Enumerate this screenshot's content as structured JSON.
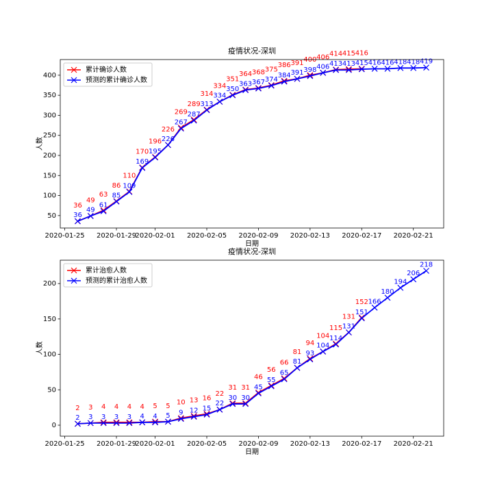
{
  "chart_data": [
    {
      "type": "line",
      "title": "疫情状况-深圳",
      "xlabel": "日期",
      "ylabel": "人数",
      "x": [
        "2020-01-26",
        "2020-01-27",
        "2020-01-28",
        "2020-01-29",
        "2020-01-30",
        "2020-01-31",
        "2020-02-01",
        "2020-02-02",
        "2020-02-03",
        "2020-02-04",
        "2020-02-05",
        "2020-02-06",
        "2020-02-07",
        "2020-02-08",
        "2020-02-09",
        "2020-02-10",
        "2020-02-11",
        "2020-02-12",
        "2020-02-13",
        "2020-02-14",
        "2020-02-15",
        "2020-02-16",
        "2020-02-17",
        "2020-02-18",
        "2020-02-19",
        "2020-02-20",
        "2020-02-21",
        "2020-02-22"
      ],
      "series": [
        {
          "name": "累计确诊人数",
          "color": "#ff0000",
          "values": [
            36,
            49,
            63,
            86,
            110,
            170,
            196,
            226,
            269,
            289,
            314,
            334,
            351,
            364,
            368,
            375,
            386,
            391,
            400,
            406,
            414,
            415,
            416,
            null,
            null,
            null,
            null,
            null
          ]
        },
        {
          "name": "预测的累计确诊人数",
          "color": "#0000ff",
          "values": [
            36,
            49,
            61,
            85,
            109,
            169,
            195,
            226,
            267,
            287,
            313,
            334,
            350,
            363,
            367,
            374,
            384,
            391,
            398,
            406,
            413,
            413,
            415,
            416,
            416,
            418,
            418,
            419
          ]
        }
      ],
      "xlim": [
        "2020-01-24T15:36",
        "2020-02-23T08:24"
      ],
      "xticks": [
        "2020-01-25",
        "2020-01-29",
        "2020-02-01",
        "2020-02-05",
        "2020-02-09",
        "2020-02-13",
        "2020-02-17",
        "2020-02-21"
      ],
      "ylim": [
        19,
        439
      ],
      "yticks": [
        50,
        100,
        150,
        200,
        250,
        300,
        350,
        400
      ],
      "legend": "upper left"
    },
    {
      "type": "line",
      "title": "疫情状况-深圳",
      "xlabel": "日期",
      "ylabel": "人数",
      "x": [
        "2020-01-26",
        "2020-01-27",
        "2020-01-28",
        "2020-01-29",
        "2020-01-30",
        "2020-01-31",
        "2020-02-01",
        "2020-02-02",
        "2020-02-03",
        "2020-02-04",
        "2020-02-05",
        "2020-02-06",
        "2020-02-07",
        "2020-02-08",
        "2020-02-09",
        "2020-02-10",
        "2020-02-11",
        "2020-02-12",
        "2020-02-13",
        "2020-02-14",
        "2020-02-15",
        "2020-02-16",
        "2020-02-17",
        "2020-02-18",
        "2020-02-19",
        "2020-02-20",
        "2020-02-21",
        "2020-02-22"
      ],
      "series": [
        {
          "name": "累计治愈人数",
          "color": "#ff0000",
          "values": [
            2,
            3,
            4,
            4,
            4,
            4,
            5,
            5,
            10,
            13,
            16,
            22,
            31,
            31,
            46,
            56,
            66,
            81,
            94,
            104,
            115,
            131,
            152,
            null,
            null,
            null,
            null,
            null
          ]
        },
        {
          "name": "预测的累计治愈人数",
          "color": "#0000ff",
          "values": [
            2,
            3,
            3,
            3,
            3,
            4,
            4,
            5,
            9,
            12,
            15,
            22,
            30,
            30,
            45,
            55,
            65,
            81,
            93,
            104,
            114,
            131,
            151,
            166,
            180,
            194,
            206,
            218
          ]
        }
      ],
      "xlim": [
        "2020-01-24T15:36",
        "2020-02-23T08:24"
      ],
      "xticks": [
        "2020-01-25",
        "2020-01-29",
        "2020-02-01",
        "2020-02-05",
        "2020-02-09",
        "2020-02-13",
        "2020-02-17",
        "2020-02-21"
      ],
      "ylim": [
        -15.5,
        233
      ],
      "yticks": [
        0,
        50,
        100,
        150,
        200
      ],
      "legend": "upper left"
    }
  ]
}
